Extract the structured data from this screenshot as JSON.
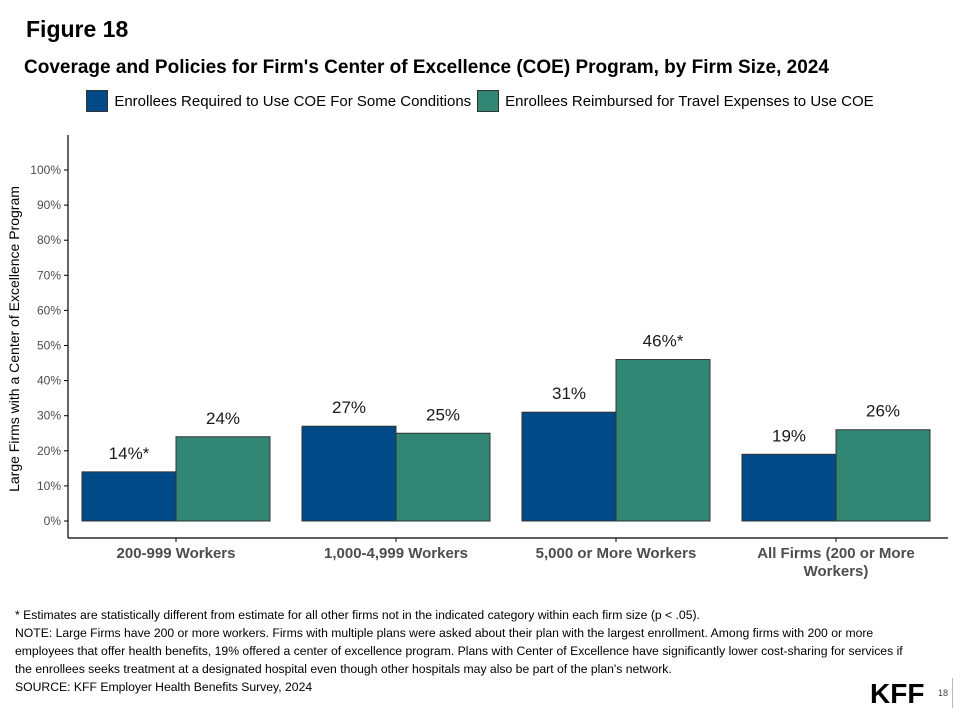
{
  "figure_label": "Figure 18",
  "chart_data": {
    "type": "bar",
    "title": "Coverage and Policies for Firm's Center of Excellence (COE) Program, by Firm Size, 2024",
    "ylabel": "Large Firms with a Center of Excellence Program",
    "xlabel": "",
    "ylim": [
      0,
      100
    ],
    "yticks": [
      "0%",
      "10%",
      "20%",
      "30%",
      "40%",
      "50%",
      "60%",
      "70%",
      "80%",
      "90%",
      "100%"
    ],
    "categories": [
      "200-999 Workers",
      "1,000-4,999 Workers",
      "5,000 or More Workers",
      "All Firms (200 or More Workers)"
    ],
    "category_lines": [
      [
        "200-999 Workers"
      ],
      [
        "1,000-4,999 Workers"
      ],
      [
        "5,000 or More Workers"
      ],
      [
        "All Firms (200 or More",
        "Workers)"
      ]
    ],
    "legend_position": "top",
    "grid": false,
    "series": [
      {
        "name": "Enrollees Required to Use COE For Some Conditions",
        "color": "#004b87",
        "values": [
          14,
          27,
          31,
          19
        ],
        "labels": [
          "14%*",
          "27%",
          "31%",
          "19%"
        ]
      },
      {
        "name": "Enrollees Reimbursed for Travel Expenses to Use COE",
        "color": "#318774",
        "values": [
          24,
          25,
          46,
          26
        ],
        "labels": [
          "24%",
          "25%",
          "46%*",
          "26%"
        ]
      }
    ]
  },
  "footnotes": [
    "* Estimates are statistically different from estimate for all other firms not in the indicated category within each firm size (p < .05).",
    "NOTE: Large Firms have 200 or more workers.  Firms with multiple plans were asked about their plan with the largest enrollment.  Among firms with 200 or more employees that offer health benefits, 19% offered a center of excellence program. Plans with Center of Excellence have significantly lower cost-sharing for services if the enrollees seeks treatment at a designated hospital even though other hospitals may also be part of the plan's network.",
    "SOURCE: KFF Employer Health Benefits Survey, 2024"
  ],
  "logo_text": "KFF",
  "page_number": "18"
}
